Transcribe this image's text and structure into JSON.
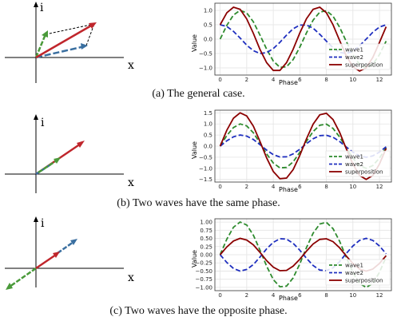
{
  "figure": {
    "panels": [
      {
        "caption": "(a) The general case.",
        "vector_axis_x": "x",
        "vector_axis_y": "i"
      },
      {
        "caption": "(b) Two waves have the same phase.",
        "vector_axis_x": "x",
        "vector_axis_y": "i"
      },
      {
        "caption": "(c) Two waves have the opposite phase.",
        "vector_axis_x": "x",
        "vector_axis_y": "i"
      }
    ]
  },
  "colors": {
    "wave1": "#2e8b2e",
    "wave2": "#1f2fbf",
    "superposition": "#8b0000",
    "vec_green": "#4a9a3a",
    "vec_blue": "#3a6fa0",
    "vec_red": "#c0262c"
  },
  "chart_data": [
    {
      "type": "line",
      "xlabel": "Phase",
      "ylabel": "Value",
      "xlim": [
        -0.4,
        12.9
      ],
      "ylim": [
        -1.25,
        1.25
      ],
      "xticks": [
        0,
        2,
        4,
        6,
        8,
        10,
        12
      ],
      "yticks": [
        1.0,
        0.5,
        0.0,
        -0.5,
        -1.0
      ],
      "ytick_labels": [
        "1.0",
        "0.5",
        "0.0",
        "−0.5",
        "−1.0"
      ],
      "grid": true,
      "legend": "lower-right",
      "x": [
        0,
        0.5,
        1,
        1.5,
        2,
        2.5,
        3,
        3.5,
        4,
        4.5,
        5,
        5.5,
        6,
        6.5,
        7,
        7.5,
        8,
        8.5,
        9,
        9.5,
        10,
        10.5,
        11,
        11.5,
        12,
        12.5
      ],
      "series": [
        {
          "name": "wave1",
          "values": [
            0,
            0.48,
            0.84,
            1.0,
            0.91,
            0.6,
            0.14,
            -0.35,
            -0.76,
            -0.98,
            -0.96,
            -0.71,
            -0.28,
            0.22,
            0.66,
            0.94,
            0.99,
            0.8,
            0.41,
            -0.08,
            -0.54,
            -0.88,
            -1.0,
            -0.88,
            -0.54,
            -0.07
          ]
        },
        {
          "name": "wave2",
          "values": [
            0.5,
            0.44,
            0.27,
            0.04,
            -0.21,
            -0.4,
            -0.5,
            -0.47,
            -0.33,
            -0.11,
            0.14,
            0.36,
            0.49,
            0.49,
            0.38,
            0.17,
            -0.07,
            -0.3,
            -0.46,
            -0.5,
            -0.42,
            -0.23,
            0.0,
            0.24,
            0.42,
            0.5
          ]
        },
        {
          "name": "superposition",
          "values": [
            0.5,
            0.92,
            1.11,
            1.04,
            0.7,
            0.2,
            -0.36,
            -0.82,
            -1.09,
            -1.09,
            -0.82,
            -0.35,
            0.21,
            0.71,
            1.04,
            1.11,
            0.92,
            0.5,
            -0.05,
            -0.58,
            -0.96,
            -1.11,
            -1.0,
            -0.64,
            -0.12,
            0.43
          ]
        }
      ]
    },
    {
      "type": "line",
      "xlabel": "Phase",
      "ylabel": "Value",
      "xlim": [
        -0.4,
        12.9
      ],
      "ylim": [
        -1.62,
        1.62
      ],
      "xticks": [
        0,
        2,
        4,
        6,
        8,
        10,
        12
      ],
      "yticks": [
        1.5,
        1.0,
        0.5,
        0.0,
        -0.5,
        -1.0,
        -1.5
      ],
      "ytick_labels": [
        "1.5",
        "1.0",
        "0.5",
        "0.0",
        "−0.5",
        "−1.0",
        "−1.5"
      ],
      "grid": true,
      "legend": "lower-right",
      "x": [
        0,
        0.5,
        1,
        1.5,
        2,
        2.5,
        3,
        3.5,
        4,
        4.5,
        5,
        5.5,
        6,
        6.5,
        7,
        7.5,
        8,
        8.5,
        9,
        9.5,
        10,
        10.5,
        11,
        11.5,
        12,
        12.5
      ],
      "series": [
        {
          "name": "wave1",
          "values": [
            0,
            0.48,
            0.84,
            1.0,
            0.91,
            0.6,
            0.14,
            -0.35,
            -0.76,
            -0.98,
            -0.96,
            -0.71,
            -0.28,
            0.22,
            0.66,
            0.94,
            0.99,
            0.8,
            0.41,
            -0.08,
            -0.54,
            -0.88,
            -1.0,
            -0.88,
            -0.54,
            -0.07
          ]
        },
        {
          "name": "wave2",
          "values": [
            0,
            0.24,
            0.42,
            0.5,
            0.45,
            0.3,
            0.07,
            -0.18,
            -0.38,
            -0.49,
            -0.48,
            -0.35,
            -0.14,
            0.11,
            0.33,
            0.47,
            0.49,
            0.4,
            0.21,
            -0.04,
            -0.27,
            -0.44,
            -0.5,
            -0.44,
            -0.27,
            -0.03
          ]
        },
        {
          "name": "superposition",
          "values": [
            0,
            0.72,
            1.26,
            1.5,
            1.36,
            0.9,
            0.21,
            -0.53,
            -1.14,
            -1.47,
            -1.44,
            -1.06,
            -0.42,
            0.33,
            0.99,
            1.41,
            1.48,
            1.2,
            0.62,
            -0.12,
            -0.81,
            -1.32,
            -1.5,
            -1.32,
            -0.81,
            -0.1
          ]
        }
      ]
    },
    {
      "type": "line",
      "xlabel": "Phase",
      "ylabel": "Value",
      "xlim": [
        -0.4,
        12.9
      ],
      "ylim": [
        -1.1,
        1.1
      ],
      "xticks": [
        0,
        2,
        4,
        6,
        8,
        10,
        12
      ],
      "yticks": [
        1.0,
        0.75,
        0.5,
        0.25,
        0.0,
        -0.25,
        -0.5,
        -0.75,
        -1.0
      ],
      "ytick_labels": [
        "1.00",
        "0.75",
        "0.50",
        "0.25",
        "0.00",
        "−0.25",
        "−0.50",
        "−0.75",
        "−1.00"
      ],
      "grid": true,
      "legend": "lower-right",
      "x": [
        0,
        0.5,
        1,
        1.5,
        2,
        2.5,
        3,
        3.5,
        4,
        4.5,
        5,
        5.5,
        6,
        6.5,
        7,
        7.5,
        8,
        8.5,
        9,
        9.5,
        10,
        10.5,
        11,
        11.5,
        12,
        12.5
      ],
      "series": [
        {
          "name": "wave1",
          "values": [
            0,
            0.48,
            0.84,
            1.0,
            0.91,
            0.6,
            0.14,
            -0.35,
            -0.76,
            -0.98,
            -0.96,
            -0.71,
            -0.28,
            0.22,
            0.66,
            0.94,
            0.99,
            0.8,
            0.41,
            -0.08,
            -0.54,
            -0.88,
            -1.0,
            -0.88,
            -0.54,
            -0.07
          ]
        },
        {
          "name": "wave2",
          "values": [
            0,
            -0.24,
            -0.42,
            -0.5,
            -0.45,
            -0.3,
            -0.07,
            0.18,
            0.38,
            0.49,
            0.48,
            0.35,
            0.14,
            -0.11,
            -0.33,
            -0.47,
            -0.49,
            -0.4,
            -0.21,
            0.04,
            0.27,
            0.44,
            0.5,
            0.44,
            0.27,
            0.03
          ]
        },
        {
          "name": "superposition",
          "values": [
            0,
            0.24,
            0.42,
            0.5,
            0.45,
            0.3,
            0.07,
            -0.18,
            -0.38,
            -0.49,
            -0.48,
            -0.35,
            -0.14,
            0.11,
            0.33,
            0.47,
            0.49,
            0.4,
            0.21,
            -0.04,
            -0.27,
            -0.44,
            -0.5,
            -0.44,
            -0.27,
            -0.03
          ]
        }
      ]
    }
  ]
}
